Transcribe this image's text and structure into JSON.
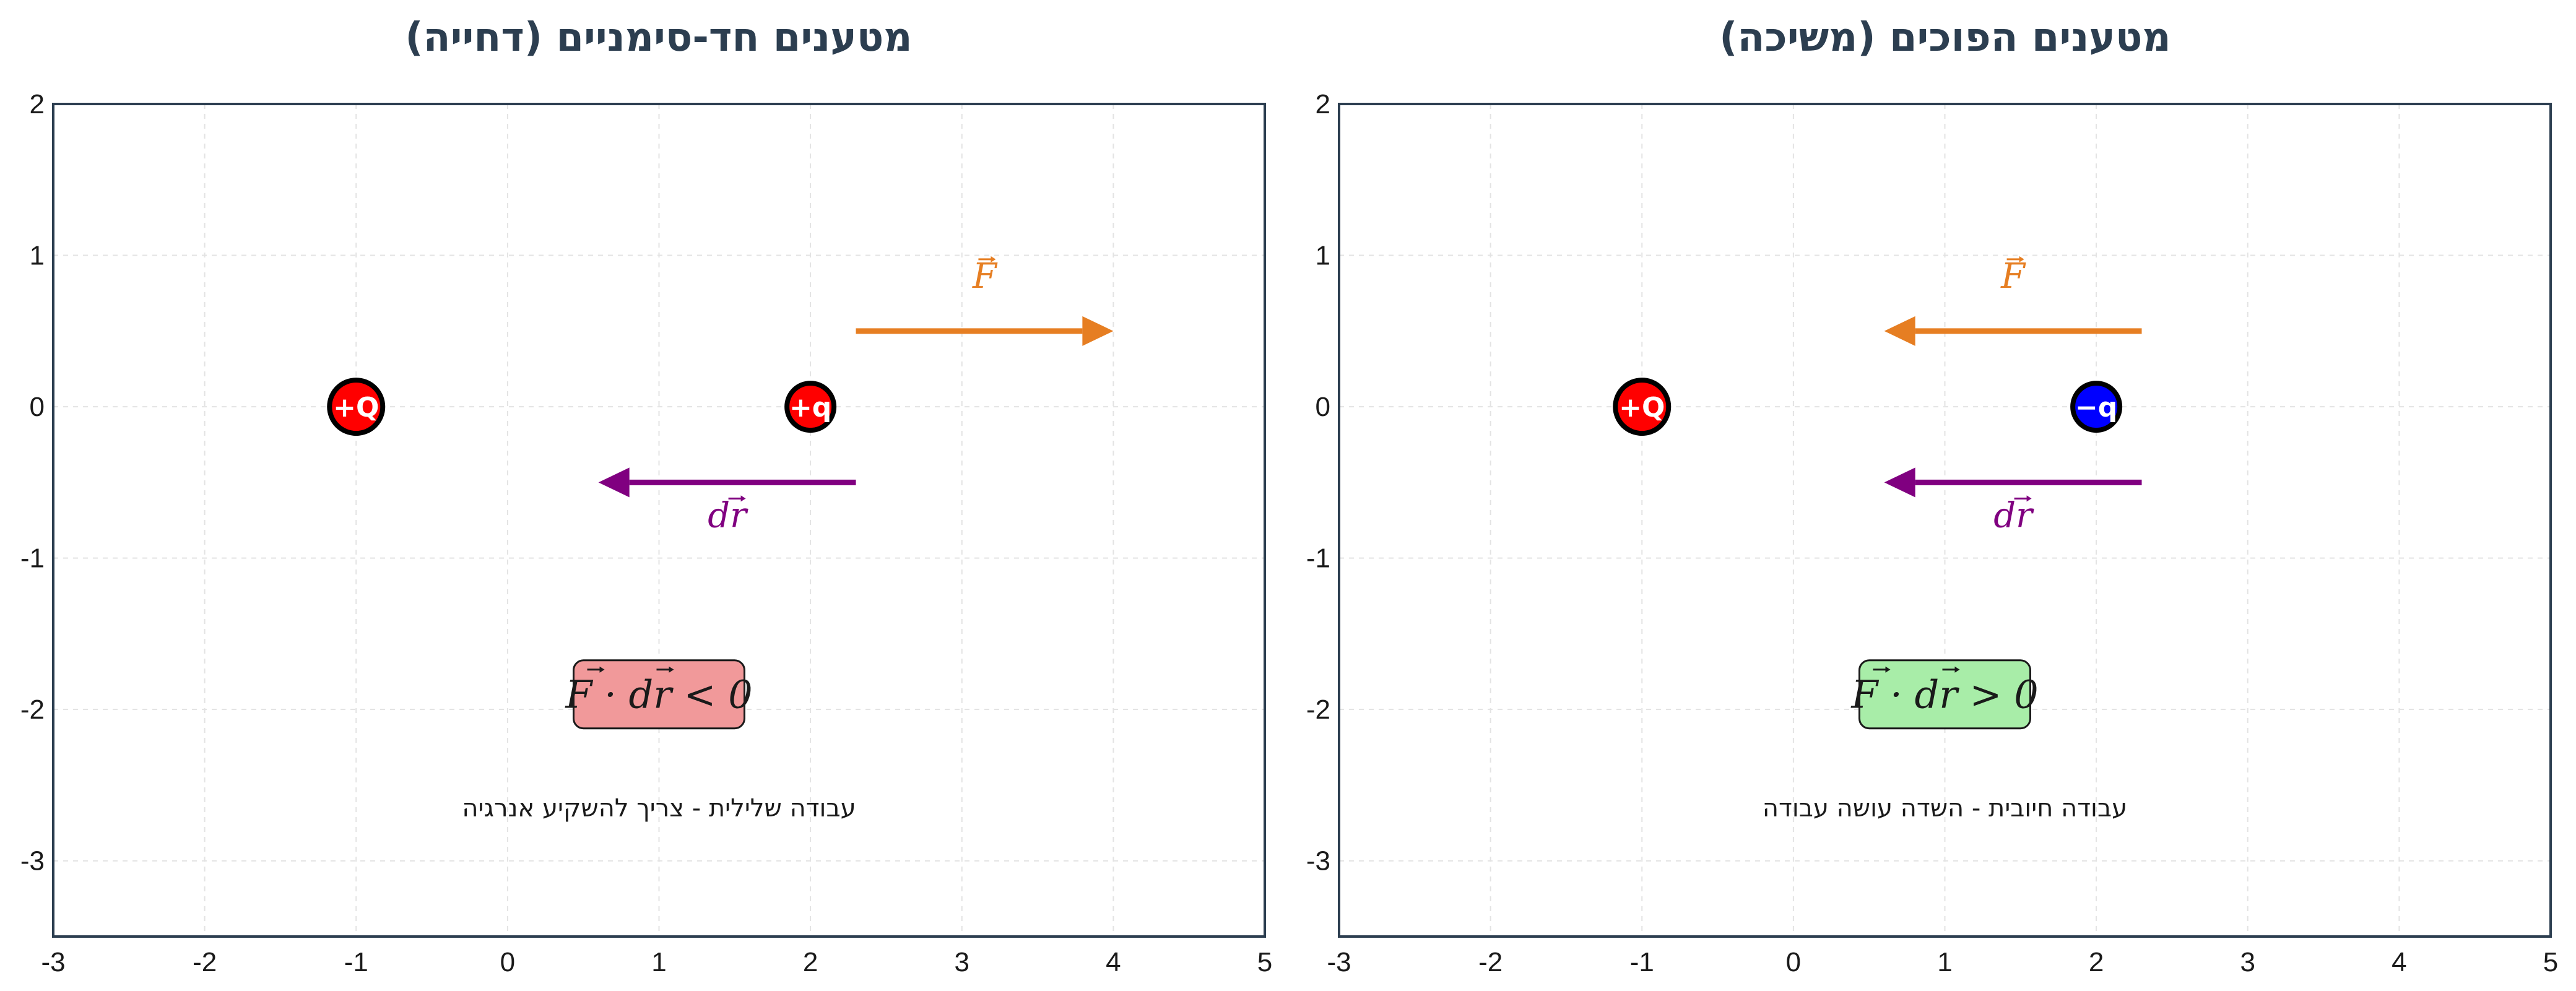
{
  "panels": [
    {
      "title": "מטענים חד-סימניים (דחייה)",
      "charges": [
        {
          "label": "+Q",
          "x": -1,
          "y": 0,
          "color": "#ff0000"
        },
        {
          "label": "+q",
          "x": 2,
          "y": 0,
          "color": "#ff0000"
        }
      ],
      "force_arrow": {
        "label": "F",
        "from": [
          2.3,
          0.5
        ],
        "to": [
          4.0,
          0.5
        ],
        "color": "#e67e22"
      },
      "dr_arrow": {
        "label": "dr",
        "from": [
          2.3,
          -0.5
        ],
        "to": [
          0.6,
          -0.5
        ],
        "color": "#800080"
      },
      "formula": {
        "lhs": "F · dr",
        "relation": "< 0",
        "box_color": "#f1999a"
      },
      "caption": "עבודה שלילית - צריך להשקיע אנרגיה"
    },
    {
      "title": "מטענים הפוכים (משיכה)",
      "charges": [
        {
          "label": "+Q",
          "x": -1,
          "y": 0,
          "color": "#ff0000"
        },
        {
          "label": "−q",
          "x": 2,
          "y": 0,
          "color": "#0000ff"
        }
      ],
      "force_arrow": {
        "label": "F",
        "from": [
          2.3,
          0.5
        ],
        "to": [
          0.6,
          0.5
        ],
        "color": "#e67e22"
      },
      "dr_arrow": {
        "label": "dr",
        "from": [
          2.3,
          -0.5
        ],
        "to": [
          0.6,
          -0.5
        ],
        "color": "#800080"
      },
      "formula": {
        "lhs": "F · dr",
        "relation": "> 0",
        "box_color": "#a8eda8"
      },
      "caption": "עבודה חיובית - השדה עושה עבודה"
    }
  ],
  "axes": {
    "xlim": [
      -3,
      5
    ],
    "ylim": [
      -3.5,
      2
    ],
    "xticks": [
      -3,
      -2,
      -1,
      0,
      1,
      2,
      3,
      4,
      5
    ],
    "yticks": [
      2,
      1,
      0,
      -1,
      -2,
      -3
    ],
    "grid": true
  }
}
